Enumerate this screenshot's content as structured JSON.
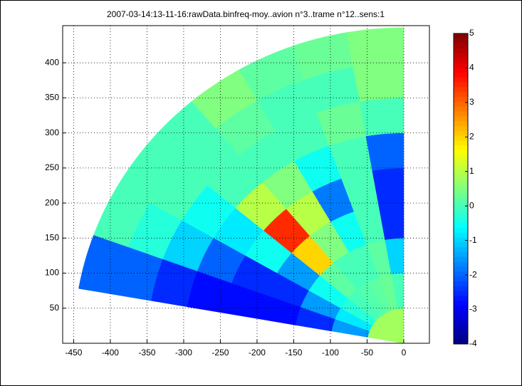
{
  "chart_data": {
    "type": "polar-heatmap",
    "title": "2007-03-14:13-11-16:rawData.binfreq-moy..avion n°3..trame n°12..sens:1",
    "colormap": "jet",
    "grid": true,
    "angle_edges": [
      90,
      100,
      110,
      120,
      130,
      140,
      150,
      160,
      170
    ],
    "radius_edges": [
      0,
      50,
      100,
      150,
      200,
      250,
      300,
      350,
      400,
      450
    ],
    "values": [
      [
        0.8,
        0.8,
        0.8,
        0.8,
        0.8,
        0.8,
        0.8,
        0.8
      ],
      [
        0,
        0.3,
        0.2,
        0.1,
        0,
        -0.3,
        -0.8,
        -1.5
      ],
      [
        -1,
        0.2,
        0,
        0,
        0.2,
        -0.5,
        -1.5,
        -2.5
      ],
      [
        -2.5,
        0,
        -0.5,
        0.5,
        2,
        -1.5,
        -2.5,
        -2.8
      ],
      [
        -2.5,
        0,
        -1.8,
        1,
        3.5,
        -0.5,
        -2.5,
        -2.8
      ],
      [
        -2,
        0,
        -0.5,
        0.5,
        1,
        -0.8,
        -2,
        -2.8
      ],
      [
        0,
        0.3,
        0,
        0,
        0,
        -0.5,
        -1,
        -2.5
      ],
      [
        0.5,
        0,
        0,
        0.2,
        0,
        0,
        -0.3,
        -2
      ],
      [
        0.5,
        0.3,
        0.2,
        0.5,
        0,
        0,
        0,
        -2
      ]
    ],
    "xlim": [
      -465,
      35
    ],
    "ylim": [
      0,
      453
    ],
    "xticks": [
      -450,
      -400,
      -350,
      -300,
      -250,
      -200,
      -150,
      -100,
      -50,
      0
    ],
    "yticks": [
      50,
      100,
      150,
      200,
      250,
      300,
      350,
      400
    ],
    "clim": [
      -4,
      5
    ],
    "cticks": [
      -4,
      -3,
      -2,
      -1,
      0,
      1,
      2,
      3,
      4,
      5
    ]
  }
}
